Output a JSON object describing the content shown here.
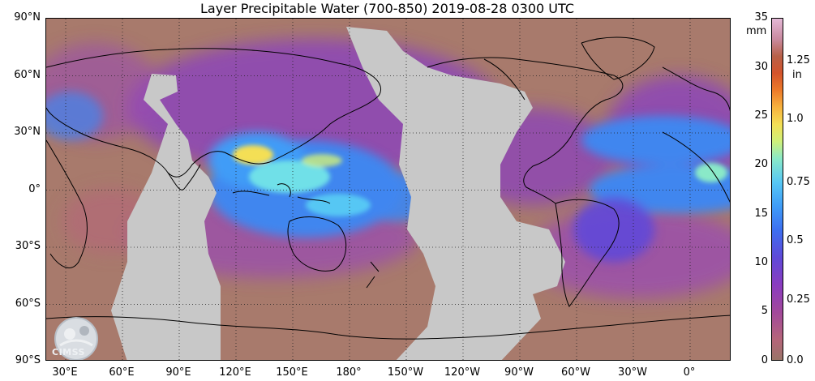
{
  "title": "Layer Precipitable Water (700-850)  2019-08-28 0300 UTC",
  "map": {
    "projection": "cylindrical",
    "center_longitude": "180",
    "lat_labels": [
      "90°N",
      "60°N",
      "30°N",
      "0°",
      "30°S",
      "60°S",
      "90°S"
    ],
    "lon_labels": [
      "30°E",
      "60°E",
      "90°E",
      "120°E",
      "150°E",
      "180°",
      "150°W",
      "120°W",
      "90°W",
      "60°W",
      "30°W",
      "0°"
    ],
    "colors": {
      "no_data": "#c8c8c8",
      "dry": "#a87a6c",
      "moist_purple": "#8c45b8",
      "moist_blue": "#3f86ef",
      "very_moist": "#6fe0e8"
    }
  },
  "colorbar": {
    "mm_unit": "mm",
    "mm_ticks": [
      "35",
      "30",
      "25",
      "20",
      "15",
      "10",
      "5",
      "0"
    ],
    "in_unit": "in",
    "in_ticks": [
      "1.25",
      "1.0",
      "0.75",
      "0.5",
      "0.25",
      "0.0"
    ],
    "gradient_stops": [
      "#9a7468",
      "#b5657a",
      "#a2489b",
      "#8a3cc0",
      "#5f49d8",
      "#3d6ff0",
      "#3f9cf7",
      "#57c7f4",
      "#8ae9c8",
      "#cff07a",
      "#f4df55",
      "#f7b23e",
      "#ec7a2a",
      "#d4542c",
      "#b86048",
      "#c98aa0",
      "#e4b8d6"
    ]
  },
  "logo": {
    "text": "CIMSS"
  }
}
